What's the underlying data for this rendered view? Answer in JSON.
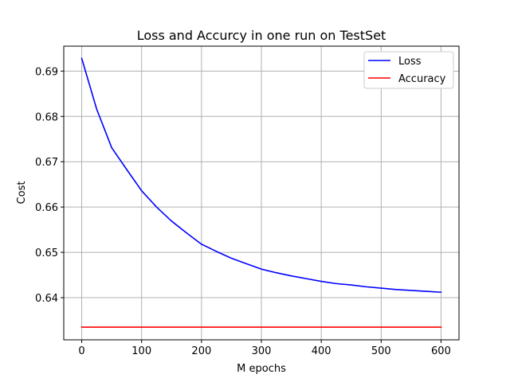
{
  "chart_data": {
    "type": "line",
    "title": "Loss and Accurcy in one run on TestSet",
    "xlabel": "M epochs",
    "ylabel": "Cost",
    "xlim": [
      -30,
      630
    ],
    "ylim": [
      0.6307,
      0.6955
    ],
    "xticks": [
      0,
      100,
      200,
      300,
      400,
      500,
      600
    ],
    "yticks": [
      0.64,
      0.65,
      0.66,
      0.67,
      0.68,
      0.69
    ],
    "ytick_labels": [
      "0.64",
      "0.65",
      "0.66",
      "0.67",
      "0.68",
      "0.69"
    ],
    "grid": true,
    "legend_position": "top-right",
    "series": [
      {
        "name": "Loss",
        "color": "#0000ff",
        "x": [
          0,
          25,
          50,
          75,
          100,
          125,
          150,
          175,
          200,
          225,
          250,
          275,
          300,
          325,
          350,
          375,
          400,
          425,
          450,
          475,
          500,
          525,
          550,
          575,
          600
        ],
        "y": [
          0.6928,
          0.6816,
          0.6731,
          0.6683,
          0.6636,
          0.66,
          0.6569,
          0.6543,
          0.6518,
          0.6502,
          0.6487,
          0.6475,
          0.6463,
          0.6455,
          0.6448,
          0.6442,
          0.6436,
          0.6431,
          0.6428,
          0.6424,
          0.6421,
          0.6418,
          0.6416,
          0.6414,
          0.6412
        ]
      },
      {
        "name": "Accuracy",
        "color": "#ff0000",
        "x": [
          0,
          600
        ],
        "y": [
          0.6335,
          0.6335
        ]
      }
    ]
  }
}
